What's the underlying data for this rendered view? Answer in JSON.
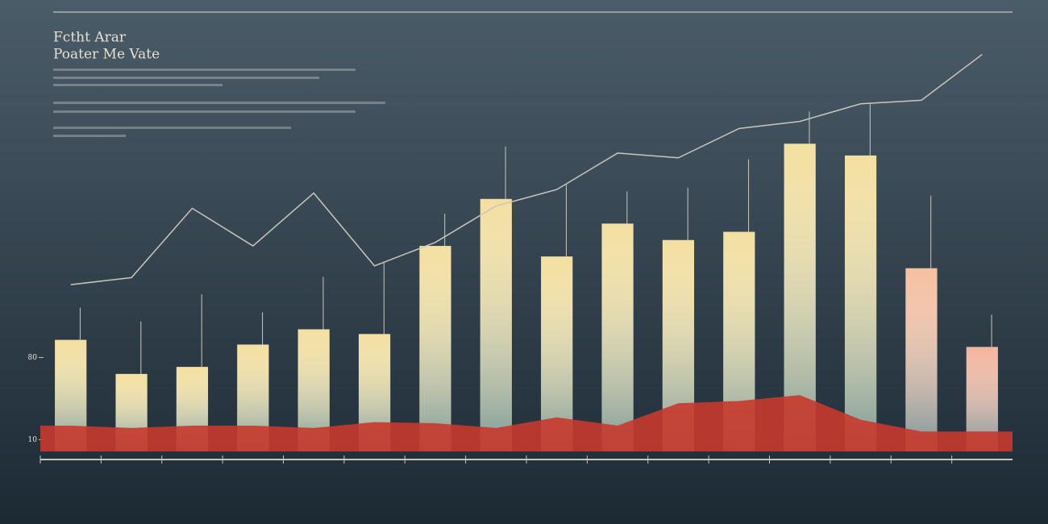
{
  "chart_data": {
    "type": "bar",
    "title": "Fctht Arar",
    "subtitle": "Poater Me Vate",
    "categories": [
      null,
      null,
      null,
      null,
      null,
      null,
      null,
      null,
      null,
      null,
      null,
      null,
      null,
      null,
      null,
      null
    ],
    "series": [
      {
        "color": "#f3dfa0",
        "values": [
          95,
          66,
          72,
          91,
          104,
          100,
          175,
          215,
          166,
          194,
          180,
          187,
          262,
          252,
          156,
          89
        ],
        "colors": [
          "#f3dfa0",
          "#f3dfa0",
          "#f3dfa0",
          "#f3dfa0",
          "#f3dfa0",
          "#f3dfa0",
          "#f3dfa0",
          "#f3dfa0",
          "#f3dfa0",
          "#f3dfa0",
          "#f3dfa0",
          "#f3dfa0",
          "#f3dfa0",
          "#f3dfa0",
          "#f6bfa0",
          "#f2b49c"
        ]
      },
      {
        "type": "line",
        "color": "#c9c7bd",
        "values": [
          142,
          148,
          207,
          175,
          220,
          158,
          178,
          209,
          223,
          254,
          250,
          275,
          281,
          296,
          299,
          338
        ]
      },
      {
        "type": "area",
        "color": "#c8392c",
        "values": [
          22,
          20,
          22,
          22,
          20,
          25,
          24,
          20,
          29,
          22,
          41,
          43,
          48,
          27,
          17,
          17
        ]
      }
    ],
    "ylim": [
      0,
      360
    ],
    "yticks": [
      10,
      80
    ]
  }
}
